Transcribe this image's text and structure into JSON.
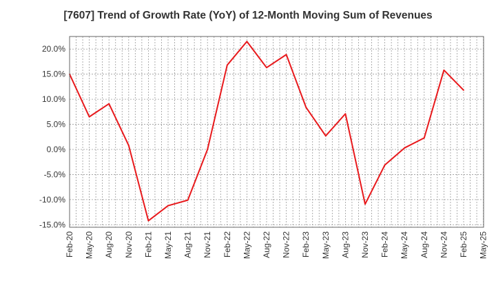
{
  "chart_data": {
    "type": "line",
    "title": "[7607]  Trend of Growth Rate (YoY) of 12-Month Moving Sum of Revenues",
    "xlabel": "",
    "ylabel": "",
    "x_tick_labels": [
      "Feb-20",
      "May-20",
      "Aug-20",
      "Nov-20",
      "Feb-21",
      "May-21",
      "Aug-21",
      "Nov-21",
      "Feb-22",
      "May-22",
      "Aug-22",
      "Nov-22",
      "Feb-23",
      "May-23",
      "Aug-23",
      "Nov-23",
      "Feb-24",
      "May-24",
      "Aug-24",
      "Nov-24",
      "Feb-25",
      "May-25"
    ],
    "y_tick_labels": [
      "20.0%",
      "15.0%",
      "10.0%",
      "5.0%",
      "0.0%",
      "-5.0%",
      "-10.0%",
      "-15.0%"
    ],
    "y_ticks": [
      20,
      15,
      10,
      5,
      0,
      -5,
      -10,
      -15
    ],
    "ylim": [
      -15.5,
      22.5
    ],
    "grid": true,
    "series": [
      {
        "color": "#e8191c",
        "x": [
          "Feb-20",
          "May-20",
          "Aug-20",
          "Nov-20",
          "Feb-21",
          "May-21",
          "Aug-21",
          "Nov-21",
          "Feb-22",
          "May-22",
          "Aug-22",
          "Nov-22",
          "Feb-23",
          "May-23",
          "Aug-23",
          "Nov-23",
          "Feb-24",
          "May-24",
          "Aug-24",
          "Nov-24",
          "Feb-25"
        ],
        "values": [
          15.0,
          6.5,
          9.1,
          0.8,
          -14.2,
          -11.2,
          -10.1,
          0.0,
          16.8,
          21.5,
          16.3,
          18.9,
          8.4,
          2.7,
          7.1,
          -10.9,
          -3.1,
          0.3,
          2.3,
          15.8,
          11.8
        ]
      }
    ]
  }
}
